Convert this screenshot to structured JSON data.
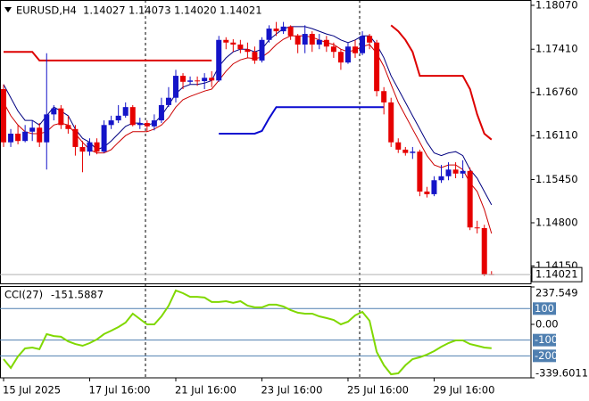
{
  "header": {
    "symbol": "EURUSD,H4",
    "values": [
      "1.14027",
      "1.14073",
      "1.14020",
      "1.14021"
    ]
  },
  "chart_data": [
    {
      "type": "candlestick",
      "up_color": "#1414c8",
      "down_color": "#e60000",
      "open": [
        1.1681,
        1.1601,
        1.1614,
        1.1603,
        1.1617,
        1.1623,
        1.1601,
        1.1643,
        1.1652,
        1.1627,
        1.1621,
        1.1594,
        1.1587,
        1.1601,
        1.1587,
        1.1627,
        1.1634,
        1.1641,
        1.1654,
        1.1627,
        1.163,
        1.1625,
        1.1634,
        1.1657,
        1.1668,
        1.1701,
        1.1692,
        1.1694,
        1.1693,
        1.1698,
        1.1694,
        1.1755,
        1.1751,
        1.1748,
        1.1741,
        1.1737,
        1.1724,
        1.1755,
        1.1772,
        1.1768,
        1.1775,
        1.1761,
        1.1748,
        1.1764,
        1.1748,
        1.1755,
        1.1745,
        1.1737,
        1.1721,
        1.1745,
        1.1735,
        1.1761,
        1.1751,
        1.1678,
        1.1661,
        1.1601,
        1.159,
        1.1585,
        1.1587,
        1.1527,
        1.1523,
        1.1544,
        1.155,
        1.156,
        1.1554,
        1.1558,
        1.1473,
        1.1472,
        1.14027
      ],
      "high": [
        1.1688,
        1.1621,
        1.1627,
        1.1627,
        1.1634,
        1.163,
        1.1735,
        1.1657,
        1.1657,
        1.1641,
        1.1627,
        1.1603,
        1.1607,
        1.1607,
        1.1634,
        1.1641,
        1.1657,
        1.1661,
        1.1657,
        1.1638,
        1.1634,
        1.1643,
        1.1668,
        1.1684,
        1.171,
        1.1705,
        1.17,
        1.17,
        1.1705,
        1.1708,
        1.1761,
        1.1759,
        1.1756,
        1.1755,
        1.1751,
        1.1745,
        1.1759,
        1.1777,
        1.1782,
        1.1782,
        1.1777,
        1.1764,
        1.1777,
        1.1768,
        1.1764,
        1.1761,
        1.1751,
        1.1741,
        1.1751,
        1.1755,
        1.1768,
        1.1764,
        1.1755,
        1.1684,
        1.1668,
        1.1607,
        1.1594,
        1.1594,
        1.159,
        1.1534,
        1.155,
        1.1567,
        1.1571,
        1.1571,
        1.1574,
        1.1563,
        1.1483,
        1.1477,
        1.14073
      ],
      "low": [
        1.1594,
        1.1594,
        1.1598,
        1.1601,
        1.1603,
        1.1594,
        1.156,
        1.1634,
        1.1621,
        1.1614,
        1.1581,
        1.1556,
        1.1581,
        1.1583,
        1.1585,
        1.1621,
        1.163,
        1.1638,
        1.1625,
        1.1621,
        1.1617,
        1.1619,
        1.163,
        1.1654,
        1.1661,
        1.1681,
        1.1688,
        1.1686,
        1.1681,
        1.1684,
        1.1692,
        1.1741,
        1.1737,
        1.1735,
        1.1728,
        1.1719,
        1.1721,
        1.1751,
        1.1761,
        1.1764,
        1.1755,
        1.1735,
        1.1735,
        1.1737,
        1.1741,
        1.1737,
        1.1728,
        1.171,
        1.1719,
        1.1728,
        1.1732,
        1.1741,
        1.167,
        1.1643,
        1.1594,
        1.1585,
        1.1581,
        1.1576,
        1.152,
        1.1518,
        1.152,
        1.154,
        1.1544,
        1.1547,
        1.1547,
        1.1469,
        1.1464,
        1.14,
        1.1402
      ],
      "close": [
        1.1601,
        1.1614,
        1.1603,
        1.1617,
        1.1623,
        1.1601,
        1.1643,
        1.1652,
        1.1627,
        1.1621,
        1.1594,
        1.1587,
        1.1601,
        1.1587,
        1.1627,
        1.1634,
        1.1641,
        1.1654,
        1.1627,
        1.163,
        1.1625,
        1.1634,
        1.1657,
        1.1668,
        1.1701,
        1.1692,
        1.1694,
        1.1693,
        1.1698,
        1.1694,
        1.1755,
        1.1751,
        1.1748,
        1.1741,
        1.1737,
        1.1724,
        1.1755,
        1.1772,
        1.1768,
        1.1775,
        1.1761,
        1.1748,
        1.1764,
        1.1748,
        1.1755,
        1.1745,
        1.1737,
        1.1721,
        1.1745,
        1.1735,
        1.1761,
        1.1751,
        1.1678,
        1.1661,
        1.1601,
        1.159,
        1.1585,
        1.1587,
        1.1527,
        1.1523,
        1.1544,
        1.155,
        1.156,
        1.1554,
        1.1558,
        1.1473,
        1.1472,
        1.1402,
        1.14021
      ],
      "overlays": [
        {
          "color": "#000080",
          "width": 1,
          "values": [
            1.1688,
            1.1668,
            1.1648,
            1.1634,
            1.1634,
            1.1627,
            1.1641,
            1.1654,
            1.1648,
            1.1641,
            1.1621,
            1.1607,
            1.1601,
            1.159,
            1.1594,
            1.1603,
            1.1614,
            1.1625,
            1.163,
            1.163,
            1.1627,
            1.163,
            1.1641,
            1.1657,
            1.1674,
            1.1684,
            1.1688,
            1.1688,
            1.169,
            1.1694,
            1.1715,
            1.1728,
            1.1737,
            1.1741,
            1.1741,
            1.1737,
            1.1741,
            1.1755,
            1.1764,
            1.1772,
            1.1775,
            1.1775,
            1.1775,
            1.1772,
            1.1768,
            1.1764,
            1.1761,
            1.1755,
            1.1751,
            1.1755,
            1.1761,
            1.1761,
            1.1748,
            1.1728,
            1.1701,
            1.1681,
            1.1661,
            1.1641,
            1.1621,
            1.1601,
            1.1585,
            1.1581,
            1.1585,
            1.1587,
            1.1581,
            1.156,
            1.1547,
            1.1527,
            1.1507
          ]
        },
        {
          "color": "#cc0000",
          "width": 1,
          "values": [
            1.1661,
            1.1641,
            1.1627,
            1.1617,
            1.1614,
            1.1614,
            1.1617,
            1.1627,
            1.163,
            1.1627,
            1.1614,
            1.1601,
            1.159,
            1.1585,
            1.1585,
            1.159,
            1.1601,
            1.1611,
            1.1617,
            1.1617,
            1.1617,
            1.1621,
            1.1627,
            1.1638,
            1.1654,
            1.1665,
            1.167,
            1.1674,
            1.1678,
            1.1681,
            1.1694,
            1.1708,
            1.1719,
            1.1725,
            1.1728,
            1.1727,
            1.1729,
            1.1737,
            1.1748,
            1.1756,
            1.1761,
            1.1761,
            1.1761,
            1.1759,
            1.1755,
            1.1751,
            1.1748,
            1.1741,
            1.1737,
            1.174,
            1.1745,
            1.1748,
            1.1735,
            1.1715,
            1.1688,
            1.1661,
            1.1641,
            1.1621,
            1.1601,
            1.1581,
            1.1567,
            1.1563,
            1.1567,
            1.1567,
            1.156,
            1.154,
            1.1527,
            1.15,
            1.1464
          ]
        },
        {
          "color": "#dd0000",
          "width": 2,
          "values": [
            1.1737,
            1.1737,
            1.1737,
            1.1737,
            1.1737,
            1.1724,
            1.1724,
            1.1724,
            1.1724,
            1.1724,
            1.1724,
            1.1724,
            1.1724,
            1.1724,
            1.1724,
            1.1724,
            1.1724,
            1.1724,
            1.1724,
            1.1724,
            1.1724,
            1.1724,
            1.1724,
            1.1724,
            1.1724,
            1.1724,
            1.1724,
            1.1724,
            1.1724,
            1.1724,
            null,
            null,
            null,
            null,
            null,
            null,
            null,
            null,
            null,
            null,
            null,
            null,
            null,
            null,
            null,
            null,
            null,
            null,
            null,
            null,
            null,
            null,
            null,
            null,
            1.1777,
            1.1768,
            1.1755,
            1.1737,
            1.1701,
            1.1701,
            1.1701,
            1.1701,
            1.1701,
            1.1701,
            1.1701,
            1.1681,
            1.1643,
            1.1614,
            1.1605
          ]
        },
        {
          "color": "#0a0ad0",
          "width": 2,
          "values": [
            null,
            null,
            null,
            null,
            null,
            null,
            null,
            null,
            null,
            null,
            null,
            null,
            null,
            null,
            null,
            null,
            null,
            null,
            null,
            null,
            null,
            null,
            null,
            null,
            null,
            null,
            null,
            null,
            null,
            null,
            1.1614,
            1.1614,
            1.1614,
            1.1614,
            1.1614,
            1.1614,
            1.1618,
            1.1637,
            1.1654,
            1.1654,
            1.1654,
            1.1654,
            1.1654,
            1.1654,
            1.1654,
            1.1654,
            1.1654,
            1.1654,
            1.1654,
            1.1654,
            1.1654,
            1.1654,
            1.1654,
            1.1654,
            null,
            null,
            null,
            null,
            null,
            null,
            null,
            null,
            null,
            null,
            null,
            null,
            null,
            null,
            null
          ]
        }
      ],
      "last_price": 1.14021,
      "xlim": [
        -0.5,
        73.5
      ],
      "xticks": [
        {
          "value": 0,
          "label": "15 Jul 2025"
        },
        {
          "value": 12,
          "label": "17 Jul 16:00"
        },
        {
          "value": 24,
          "label": "21 Jul 16:00"
        },
        {
          "value": 36,
          "label": "23 Jul 16:00"
        },
        {
          "value": 48,
          "label": "25 Jul 16:00"
        },
        {
          "value": 60,
          "label": "29 Jul 16:00"
        }
      ],
      "ylim": [
        1.13889,
        1.1815
      ],
      "yticks": [
        {
          "value": 1.1807,
          "label": "1.18070"
        },
        {
          "value": 1.1741,
          "label": "1.17410"
        },
        {
          "value": 1.1676,
          "label": "1.16760"
        },
        {
          "value": 1.1611,
          "label": "1.16110"
        },
        {
          "value": 1.1545,
          "label": "1.15450"
        },
        {
          "value": 1.148,
          "label": "1.14800"
        },
        {
          "value": 1.1415,
          "label": "1.14150"
        }
      ]
    },
    {
      "type": "line",
      "title": "CCI(27)",
      "color": "#80d800",
      "values": [
        -221,
        -277,
        -204,
        -153,
        -147,
        -158,
        -62,
        -74,
        -79,
        -108,
        -125,
        -136,
        -119,
        -96,
        -62,
        -40,
        -17,
        11,
        68,
        34,
        0,
        0,
        51,
        119,
        215,
        198,
        175,
        175,
        170,
        142,
        142,
        147,
        136,
        147,
        119,
        108,
        108,
        125,
        125,
        113,
        91,
        74,
        68,
        68,
        51,
        40,
        28,
        0,
        17,
        57,
        79,
        23,
        -175,
        -260,
        -317,
        -311,
        -260,
        -221,
        -209,
        -192,
        -170,
        -142,
        -119,
        -102,
        -102,
        -125,
        -136,
        -147,
        -151.5887
      ],
      "ylim": [
        -339.6011,
        237.549
      ],
      "yticks": [
        237.549,
        {
          "value": 0,
          "label": "0.00"
        },
        -339.6011
      ],
      "levels": [
        100,
        -100,
        -200
      ],
      "level_color": "#4f7fb0"
    }
  ]
}
